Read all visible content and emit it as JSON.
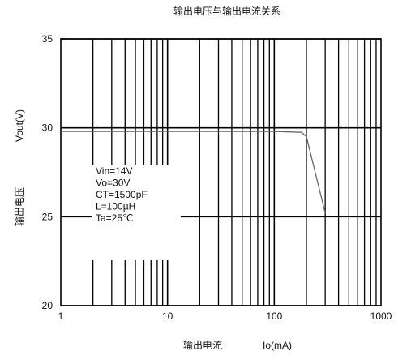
{
  "chart_data": {
    "type": "line",
    "title": "输出电压与输出电流关系",
    "ylabel_cn": "输出电压",
    "ylabel": "Vout(V)",
    "xlabel_cn": "输出电流",
    "xlabel": "Io(mA)",
    "x_scale": "log",
    "xlim": [
      1,
      1000
    ],
    "ylim": [
      20,
      35
    ],
    "x_ticks": [
      "1",
      "10",
      "100",
      "1000"
    ],
    "y_ticks": [
      "20",
      "25",
      "30",
      "35"
    ],
    "grid": true,
    "annotations": [
      "Vin=14V",
      "Vo=30V",
      "CT=1500pF",
      "L=100µH",
      "Ta=25℃"
    ],
    "series": [
      {
        "x": [
          1,
          100,
          180,
          200,
          300
        ],
        "y": [
          29.8,
          29.8,
          29.75,
          29.5,
          25.2
        ]
      }
    ]
  }
}
